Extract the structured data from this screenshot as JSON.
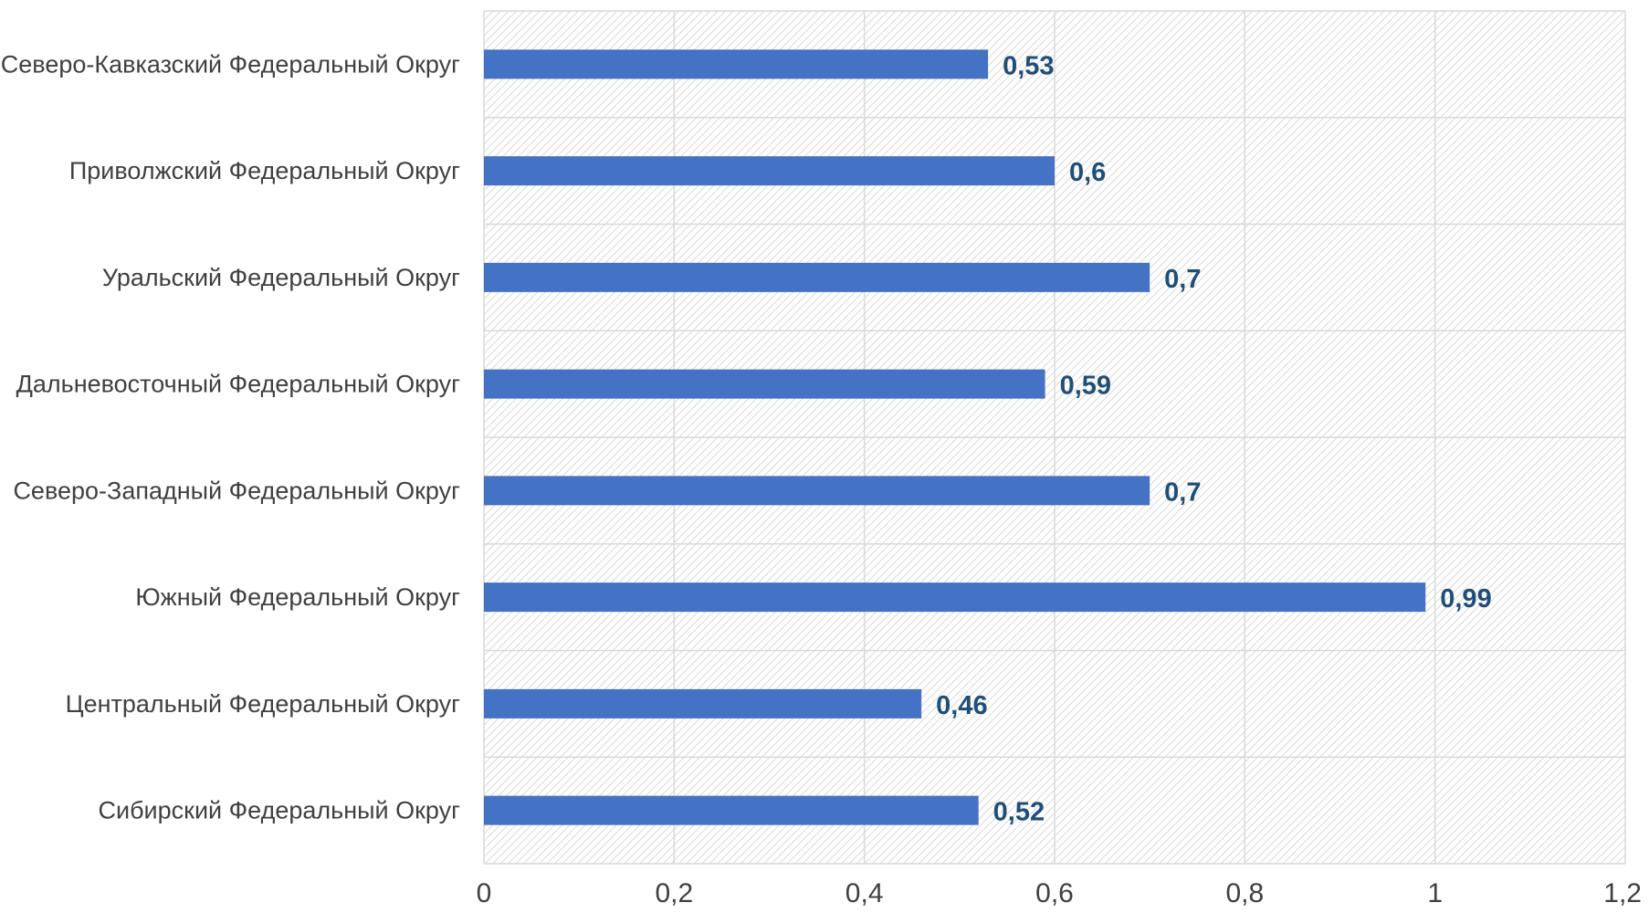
{
  "chart_data": {
    "type": "bar",
    "orientation": "horizontal",
    "categories": [
      "Северо-Кавказский Федеральный Округ",
      "Приволжский Федеральный Округ",
      "Уральский Федеральный Округ",
      "Дальневосточный Федеральный Округ",
      "Северо-Западный Федеральный Округ",
      "Южный Федеральный Округ",
      "Центральный Федеральный Округ",
      "Сибирский Федеральный Округ"
    ],
    "values": [
      0.53,
      0.6,
      0.7,
      0.59,
      0.7,
      0.99,
      0.46,
      0.52
    ],
    "data_labels": [
      "0,53",
      "0,6",
      "0,7",
      "0,59",
      "0,7",
      "0,99",
      "0,46",
      "0,52"
    ],
    "x_ticks": [
      0,
      0.2,
      0.4,
      0.6,
      0.8,
      1,
      1.2
    ],
    "x_tick_labels": [
      "0",
      "0,2",
      "0,4",
      "0,6",
      "0,8",
      "1",
      "1,2"
    ],
    "xlim": [
      0,
      1.2
    ],
    "title": "",
    "xlabel": "",
    "ylabel": "",
    "grid": true,
    "legend": "none",
    "bar_color": "#4472C4",
    "data_label_color": "#1F4E79",
    "background_pattern": "diagonal-hatch"
  }
}
